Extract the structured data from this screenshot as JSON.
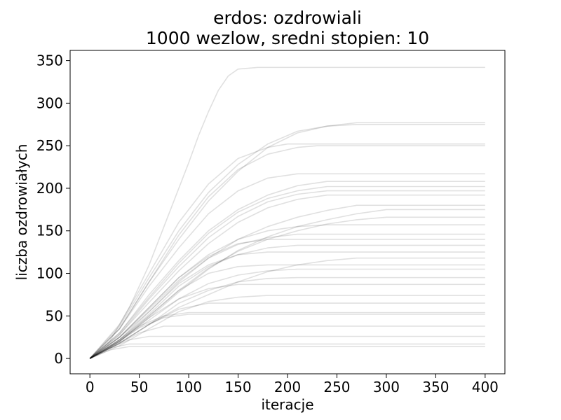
{
  "chart_data": {
    "type": "line",
    "title": [
      "erdos: ozdrowiali",
      "1000 wezlow, sredni stopien: 10"
    ],
    "xlabel": "iteracje",
    "ylabel": "liczba ozdrowiałych",
    "xlim": [
      -20,
      420
    ],
    "ylim": [
      -18,
      362
    ],
    "xticks": [
      0,
      50,
      100,
      150,
      200,
      250,
      300,
      350,
      400
    ],
    "yticks": [
      0,
      50,
      100,
      150,
      200,
      250,
      300,
      350
    ],
    "grid": false,
    "legend": false,
    "line_color": "#000000",
    "line_opacity": 0.12,
    "runs": 110,
    "series": [
      {
        "x": [
          0,
          20,
          40,
          60,
          80,
          100,
          110,
          120,
          130,
          140,
          150,
          160,
          170,
          180,
          400
        ],
        "y": [
          0,
          20,
          60,
          110,
          170,
          230,
          262,
          290,
          315,
          332,
          340,
          341,
          342,
          342,
          342
        ]
      },
      {
        "x": [
          0,
          30,
          60,
          90,
          120,
          150,
          180,
          210,
          240,
          270,
          400
        ],
        "y": [
          0,
          35,
          90,
          140,
          185,
          220,
          248,
          265,
          273,
          277,
          277
        ]
      },
      {
        "x": [
          0,
          30,
          60,
          90,
          120,
          150,
          180,
          210,
          240,
          270,
          400
        ],
        "y": [
          0,
          38,
          95,
          150,
          195,
          228,
          252,
          267,
          273,
          275,
          275
        ]
      },
      {
        "x": [
          0,
          30,
          60,
          90,
          120,
          150,
          180,
          210,
          230,
          400
        ],
        "y": [
          0,
          35,
          90,
          145,
          190,
          222,
          240,
          248,
          250,
          250
        ]
      },
      {
        "x": [
          0,
          30,
          60,
          90,
          120,
          150,
          180,
          200,
          400
        ],
        "y": [
          0,
          40,
          100,
          160,
          205,
          235,
          248,
          252,
          252
        ]
      },
      {
        "x": [
          0,
          30,
          60,
          90,
          120,
          150,
          180,
          210,
          400
        ],
        "y": [
          0,
          35,
          85,
          130,
          170,
          197,
          212,
          217,
          217
        ]
      },
      {
        "x": [
          0,
          30,
          60,
          90,
          120,
          150,
          180,
          210,
          240,
          400
        ],
        "y": [
          0,
          30,
          75,
          115,
          150,
          175,
          192,
          203,
          208,
          208
        ]
      },
      {
        "x": [
          0,
          30,
          60,
          90,
          120,
          150,
          180,
          210,
          240,
          400
        ],
        "y": [
          0,
          30,
          72,
          112,
          147,
          172,
          188,
          197,
          202,
          202
        ]
      },
      {
        "x": [
          0,
          30,
          60,
          90,
          120,
          150,
          180,
          210,
          240,
          400
        ],
        "y": [
          0,
          28,
          70,
          108,
          142,
          167,
          184,
          193,
          197,
          197
        ]
      },
      {
        "x": [
          0,
          30,
          60,
          90,
          120,
          150,
          180,
          210,
          240,
          400
        ],
        "y": [
          0,
          28,
          66,
          103,
          135,
          160,
          177,
          187,
          192,
          192
        ]
      },
      {
        "x": [
          0,
          30,
          60,
          90,
          120,
          150,
          180,
          210,
          240,
          270,
          300,
          400
        ],
        "y": [
          0,
          25,
          55,
          90,
          118,
          140,
          155,
          166,
          174,
          180,
          180,
          180
        ]
      },
      {
        "x": [
          0,
          30,
          60,
          90,
          120,
          150,
          180,
          210,
          240,
          270,
          300,
          400
        ],
        "y": [
          0,
          20,
          48,
          78,
          105,
          127,
          143,
          155,
          163,
          170,
          175,
          175
        ]
      },
      {
        "x": [
          0,
          30,
          60,
          90,
          120,
          150,
          180,
          210,
          240,
          270,
          300,
          400
        ],
        "y": [
          0,
          22,
          50,
          80,
          106,
          126,
          140,
          150,
          158,
          163,
          166,
          166
        ]
      },
      {
        "x": [
          0,
          30,
          60,
          90,
          120,
          150,
          180,
          210,
          240,
          400
        ],
        "y": [
          0,
          25,
          60,
          95,
          122,
          140,
          150,
          155,
          157,
          157
        ]
      },
      {
        "x": [
          0,
          30,
          60,
          90,
          120,
          150,
          180,
          210,
          400
        ],
        "y": [
          0,
          25,
          58,
          92,
          118,
          134,
          142,
          146,
          146
        ]
      },
      {
        "x": [
          0,
          30,
          60,
          90,
          120,
          150,
          180,
          400
        ],
        "y": [
          0,
          25,
          60,
          95,
          120,
          135,
          140,
          140
        ]
      },
      {
        "x": [
          0,
          30,
          60,
          90,
          120,
          150,
          180,
          210,
          400
        ],
        "y": [
          0,
          22,
          52,
          85,
          108,
          122,
          130,
          133,
          133
        ]
      },
      {
        "x": [
          0,
          30,
          60,
          90,
          120,
          150,
          180,
          400
        ],
        "y": [
          0,
          22,
          55,
          88,
          110,
          122,
          125,
          125
        ]
      },
      {
        "x": [
          0,
          30,
          60,
          90,
          120,
          150,
          180,
          210,
          240,
          270,
          300,
          400
        ],
        "y": [
          0,
          18,
          40,
          60,
          75,
          90,
          102,
          110,
          115,
          118,
          118,
          118
        ]
      },
      {
        "x": [
          0,
          30,
          60,
          90,
          120,
          150,
          180,
          400
        ],
        "y": [
          0,
          20,
          50,
          80,
          100,
          108,
          110,
          110
        ]
      },
      {
        "x": [
          0,
          30,
          60,
          90,
          120,
          150,
          180,
          210,
          400
        ],
        "y": [
          0,
          20,
          45,
          70,
          88,
          98,
          103,
          105,
          105
        ]
      },
      {
        "x": [
          0,
          30,
          60,
          90,
          120,
          150,
          180,
          210,
          400
        ],
        "y": [
          0,
          18,
          40,
          65,
          80,
          90,
          94,
          95,
          95
        ]
      },
      {
        "x": [
          0,
          30,
          60,
          90,
          120,
          150,
          400
        ],
        "y": [
          0,
          20,
          48,
          70,
          82,
          87,
          87
        ]
      },
      {
        "x": [
          0,
          30,
          60,
          90,
          120,
          150,
          180,
          400
        ],
        "y": [
          0,
          15,
          35,
          55,
          67,
          72,
          74,
          74
        ]
      },
      {
        "x": [
          0,
          30,
          60,
          90,
          120,
          400
        ],
        "y": [
          0,
          18,
          40,
          58,
          65,
          65
        ]
      },
      {
        "x": [
          0,
          25,
          50,
          75,
          100,
          400
        ],
        "y": [
          0,
          18,
          38,
          50,
          54,
          54
        ]
      },
      {
        "x": [
          0,
          25,
          50,
          75,
          100,
          400
        ],
        "y": [
          0,
          17,
          36,
          48,
          52,
          52
        ]
      },
      {
        "x": [
          0,
          25,
          50,
          75,
          400
        ],
        "y": [
          0,
          15,
          30,
          38,
          38
        ]
      },
      {
        "x": [
          0,
          20,
          40,
          60,
          400
        ],
        "y": [
          0,
          12,
          22,
          26,
          26
        ]
      },
      {
        "x": [
          0,
          20,
          40,
          400
        ],
        "y": [
          0,
          12,
          17,
          17
        ]
      },
      {
        "x": [
          0,
          20,
          40,
          400
        ],
        "y": [
          0,
          10,
          14,
          14
        ]
      }
    ]
  }
}
